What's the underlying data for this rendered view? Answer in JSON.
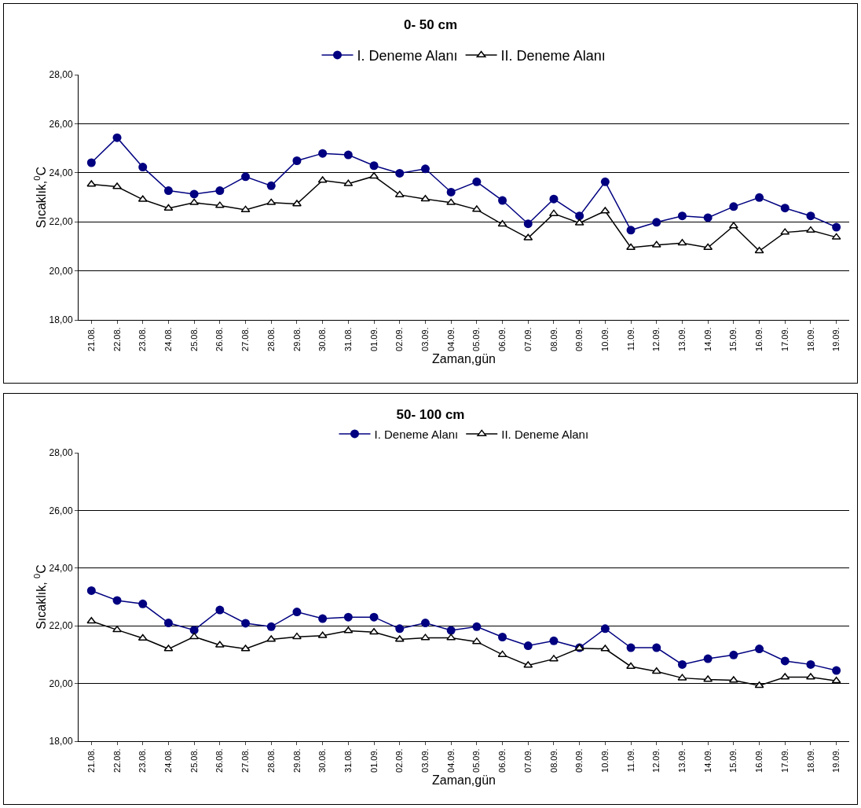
{
  "chart_data": [
    {
      "type": "line",
      "title": "0- 50 cm",
      "xlabel": "Zaman,gün",
      "ylabel": "Sıcaklık,$^{0}$C",
      "categories": [
        "21.08.",
        "22.08.",
        "23.08.",
        "24.08.",
        "25.08.",
        "26.08.",
        "27.08.",
        "28.08.",
        "29.08.",
        "30.08.",
        "31.08.",
        "01.09.",
        "02.09.",
        "03.09.",
        "04.09.",
        "05.09.",
        "06.09.",
        "07.09.",
        "08.09.",
        "09.09.",
        "10.09.",
        "11.09.",
        "12.09.",
        "13.09.",
        "14.09.",
        "15.09.",
        "16.09.",
        "17.09.",
        "18.09.",
        "19.09."
      ],
      "series": [
        {
          "name": "I. Deneme Alanı",
          "color": "#000080",
          "marker": "circle",
          "values": [
            24.41,
            25.43,
            24.23,
            23.27,
            23.13,
            23.27,
            23.84,
            23.47,
            24.49,
            24.79,
            24.73,
            24.29,
            23.98,
            24.16,
            23.21,
            23.63,
            22.87,
            21.92,
            22.93,
            22.24,
            23.63,
            21.66,
            21.98,
            22.24,
            22.17,
            22.62,
            22.99,
            22.56,
            22.24,
            21.78
          ]
        },
        {
          "name": "II. Deneme Alanı",
          "color": "#000000",
          "marker": "triangle",
          "values": [
            23.53,
            23.43,
            22.91,
            22.55,
            22.78,
            22.66,
            22.49,
            22.78,
            22.73,
            23.69,
            23.55,
            23.86,
            23.1,
            22.93,
            22.78,
            22.5,
            21.9,
            21.34,
            22.33,
            21.95,
            22.44,
            20.95,
            21.05,
            21.13,
            20.95,
            21.83,
            20.81,
            21.57,
            21.65,
            21.37
          ]
        }
      ],
      "ylim": [
        18,
        28
      ],
      "yticks": [
        {
          "value": 18,
          "label": "18,00"
        },
        {
          "value": 20,
          "label": "20,00"
        },
        {
          "value": 22,
          "label": "22,00"
        },
        {
          "value": 24,
          "label": "24,00"
        },
        {
          "value": 26,
          "label": "26,00"
        },
        {
          "value": 28,
          "label": "28,00"
        }
      ],
      "grid": "y",
      "legend": "top",
      "line_style": "solid"
    },
    {
      "type": "line",
      "title": "50- 100 cm",
      "xlabel": "Zaman,gün",
      "ylabel": "Sıcaklık, $^{0}$C",
      "categories": [
        "21.08.",
        "22.08.",
        "23.08.",
        "24.08.",
        "25.08.",
        "26.08.",
        "27.08.",
        "28.08.",
        "29.08.",
        "30.08.",
        "31.08.",
        "01.09.",
        "02.09.",
        "03.09.",
        "04.09.",
        "05.09.",
        "06.09.",
        "07.09.",
        "08.09.",
        "09.09.",
        "10.09.",
        "11.09.",
        "12.09.",
        "13.09.",
        "14.09.",
        "15.09.",
        "16.09.",
        "17.09.",
        "18.09.",
        "19.09."
      ],
      "series": [
        {
          "name": "I. Deneme Alanı",
          "color": "#000080",
          "marker": "circle",
          "values": [
            23.22,
            22.88,
            22.76,
            22.1,
            21.85,
            22.55,
            22.09,
            21.97,
            22.48,
            22.25,
            22.3,
            22.3,
            21.9,
            22.1,
            21.84,
            21.97,
            21.61,
            21.31,
            21.48,
            21.24,
            21.9,
            21.24,
            21.24,
            20.66,
            20.86,
            20.99,
            21.2,
            20.78,
            20.66,
            20.45
          ]
        },
        {
          "name": "II. Deneme Alanı",
          "color": "#000000",
          "marker": "triangle",
          "values": [
            22.16,
            21.86,
            21.57,
            21.2,
            21.62,
            21.33,
            21.2,
            21.53,
            21.62,
            21.66,
            21.83,
            21.78,
            21.53,
            21.58,
            21.58,
            21.45,
            21.0,
            20.63,
            20.85,
            21.22,
            21.2,
            20.59,
            20.42,
            20.19,
            20.14,
            20.11,
            19.93,
            20.22,
            20.22,
            20.09
          ]
        }
      ],
      "ylim": [
        18,
        28
      ],
      "yticks": [
        {
          "value": 18,
          "label": "18,00"
        },
        {
          "value": 20,
          "label": "20,00"
        },
        {
          "value": 22,
          "label": "22,00"
        },
        {
          "value": 24,
          "label": "24,00"
        },
        {
          "value": 26,
          "label": "26,00"
        },
        {
          "value": 28,
          "label": "28,00"
        }
      ],
      "grid": "y",
      "legend": "top",
      "line_style": "solid"
    }
  ]
}
